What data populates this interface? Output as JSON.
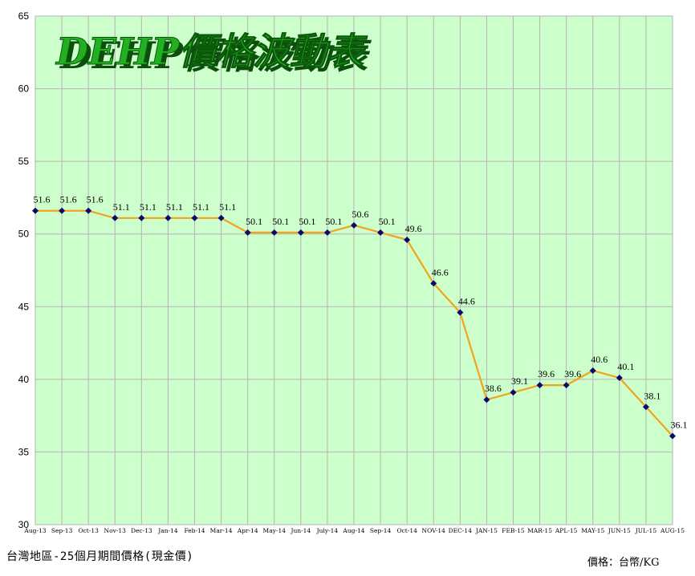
{
  "chart_data": {
    "type": "line",
    "title": "DEHP價格波動表",
    "xlabel": "",
    "ylabel": "",
    "ylim": [
      30,
      65
    ],
    "yticks": [
      30,
      35,
      40,
      45,
      50,
      55,
      60,
      65
    ],
    "grid": true,
    "legend": "none",
    "categories": [
      "Aug-13",
      "Sep-13",
      "Oct-13",
      "Nov-13",
      "Dec-13",
      "Jan-14",
      "Feb-14",
      "Mar-14",
      "Apr-14",
      "May-14",
      "Jun-14",
      "July-14",
      "Aug-14",
      "Sep-14",
      "Oct-14",
      "NOV-14",
      "DEC-14",
      "JAN-15",
      "FEB-15",
      "MAR-15",
      "APL-15",
      "MAY-15",
      "JUN-15",
      "JUL-15",
      "AUG-15"
    ],
    "series": [
      {
        "values": [
          51.6,
          51.6,
          51.6,
          51.1,
          51.1,
          51.1,
          51.1,
          51.1,
          50.1,
          50.1,
          50.1,
          50.1,
          50.6,
          50.1,
          49.6,
          46.6,
          44.6,
          38.6,
          39.1,
          39.6,
          39.6,
          40.6,
          40.1,
          38.1,
          36.1
        ]
      }
    ],
    "data_labels": [
      "51.6",
      "51.6",
      "51.6",
      "51.1",
      "51.1",
      "51.1",
      "51.1",
      "51.1",
      "50.1",
      "50.1",
      "50.1",
      "50.1",
      "50.6",
      "50.1",
      "49.6",
      "46.6",
      "44.6",
      "38.6",
      "39.1",
      "39.6",
      "39.6",
      "40.6",
      "40.1",
      "38.1",
      "36.1"
    ],
    "colors": {
      "plot_background": "#ccffcc",
      "line": "#f5a21b",
      "marker": "#0a0a6e",
      "title_fill": "#22b022",
      "title_shadow": "#0c4f0c",
      "grid": "#b4b4b4"
    }
  },
  "footer": {
    "source_note": "台灣地區-25個月期間價格(現金價)",
    "unit_note": "價格：台幣/KG"
  }
}
